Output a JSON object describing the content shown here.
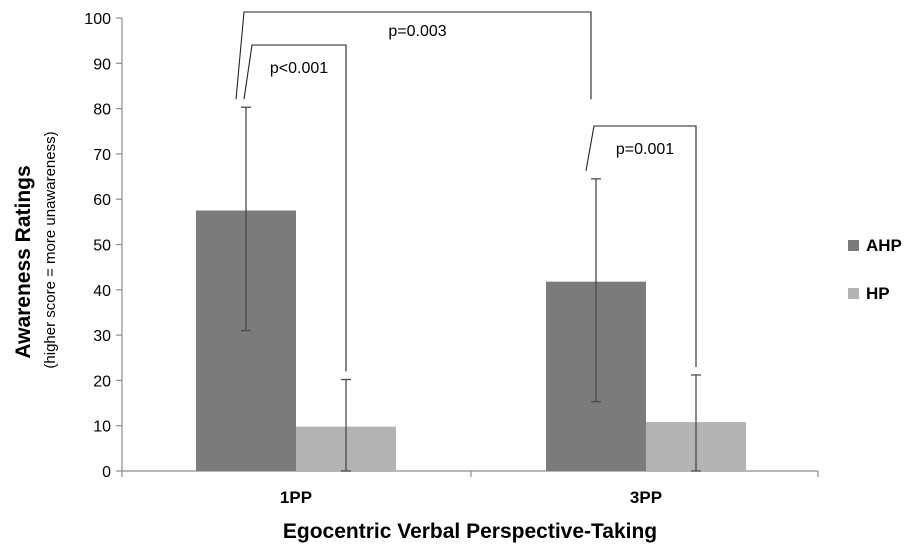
{
  "chart_data": {
    "type": "bar",
    "title": "",
    "xlabel": "Egocentric Verbal Perspective-Taking",
    "ylabel": "Awareness Ratings",
    "ylabel_sub": "(higher score = more unawareness)",
    "ylim": [
      0,
      100
    ],
    "yticks": [
      0,
      10,
      20,
      30,
      40,
      50,
      60,
      70,
      80,
      90,
      100
    ],
    "categories": [
      "1PP",
      "3PP"
    ],
    "series": [
      {
        "name": "AHP",
        "color": "#7b7b7b",
        "values": [
          57.5,
          41.8
        ],
        "err_low": [
          31,
          15.3
        ],
        "err_high": [
          80.3,
          64.5
        ]
      },
      {
        "name": "HP",
        "color": "#b3b3b3",
        "values": [
          9.8,
          10.8
        ],
        "err_low": [
          0,
          0
        ],
        "err_high": [
          20.2,
          21.2
        ]
      }
    ],
    "legend_position": "right",
    "grid": false,
    "annotations": [
      {
        "label": "p<0.001",
        "between": [
          "1PP:AHP",
          "1PP:HP"
        ]
      },
      {
        "label": "p=0.001",
        "between": [
          "3PP:AHP",
          "3PP:HP"
        ]
      },
      {
        "label": "p=0.003",
        "between": [
          "1PP:AHP",
          "3PP:AHP"
        ]
      }
    ]
  }
}
